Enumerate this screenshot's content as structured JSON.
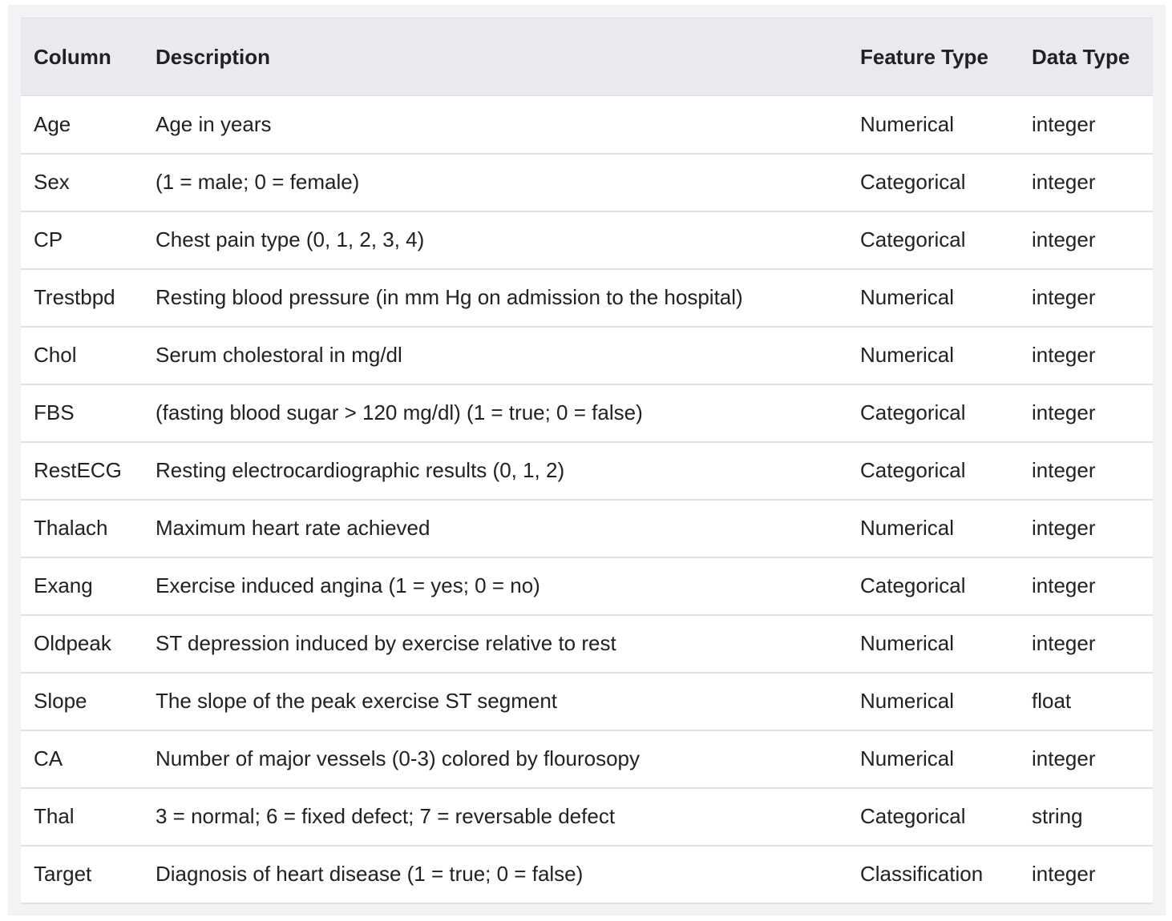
{
  "table": {
    "headers": {
      "column": "Column",
      "description": "Description",
      "feature_type": "Feature Type",
      "data_type": "Data Type"
    },
    "rows": [
      {
        "column": "Age",
        "description": "Age in years",
        "feature_type": "Numerical",
        "data_type": "integer"
      },
      {
        "column": "Sex",
        "description": "(1 = male; 0 = female)",
        "feature_type": "Categorical",
        "data_type": "integer"
      },
      {
        "column": "CP",
        "description": "Chest pain type (0, 1, 2, 3, 4)",
        "feature_type": "Categorical",
        "data_type": "integer"
      },
      {
        "column": "Trestbpd",
        "description": "Resting blood pressure (in mm Hg on admission to the hospital)",
        "feature_type": "Numerical",
        "data_type": "integer"
      },
      {
        "column": "Chol",
        "description": "Serum cholestoral in mg/dl",
        "feature_type": "Numerical",
        "data_type": "integer"
      },
      {
        "column": "FBS",
        "description": "(fasting blood sugar > 120 mg/dl) (1 = true; 0 = false)",
        "feature_type": "Categorical",
        "data_type": "integer"
      },
      {
        "column": "RestECG",
        "description": "Resting electrocardiographic results (0, 1, 2)",
        "feature_type": "Categorical",
        "data_type": "integer"
      },
      {
        "column": "Thalach",
        "description": "Maximum heart rate achieved",
        "feature_type": "Numerical",
        "data_type": "integer"
      },
      {
        "column": "Exang",
        "description": "Exercise induced angina (1 = yes; 0 = no)",
        "feature_type": "Categorical",
        "data_type": "integer"
      },
      {
        "column": "Oldpeak",
        "description": "ST depression induced by exercise relative to rest",
        "feature_type": "Numerical",
        "data_type": "integer"
      },
      {
        "column": "Slope",
        "description": "The slope of the peak exercise ST segment",
        "feature_type": "Numerical",
        "data_type": "float"
      },
      {
        "column": "CA",
        "description": "Number of major vessels (0-3) colored by flourosopy",
        "feature_type": "Numerical",
        "data_type": "integer"
      },
      {
        "column": "Thal",
        "description": "3 = normal; 6 = fixed defect; 7 = reversable defect",
        "feature_type": "Categorical",
        "data_type": "string"
      },
      {
        "column": "Target",
        "description": "Diagnosis of heart disease (1 = true; 0 = false)",
        "feature_type": "Classification",
        "data_type": "integer"
      }
    ]
  }
}
